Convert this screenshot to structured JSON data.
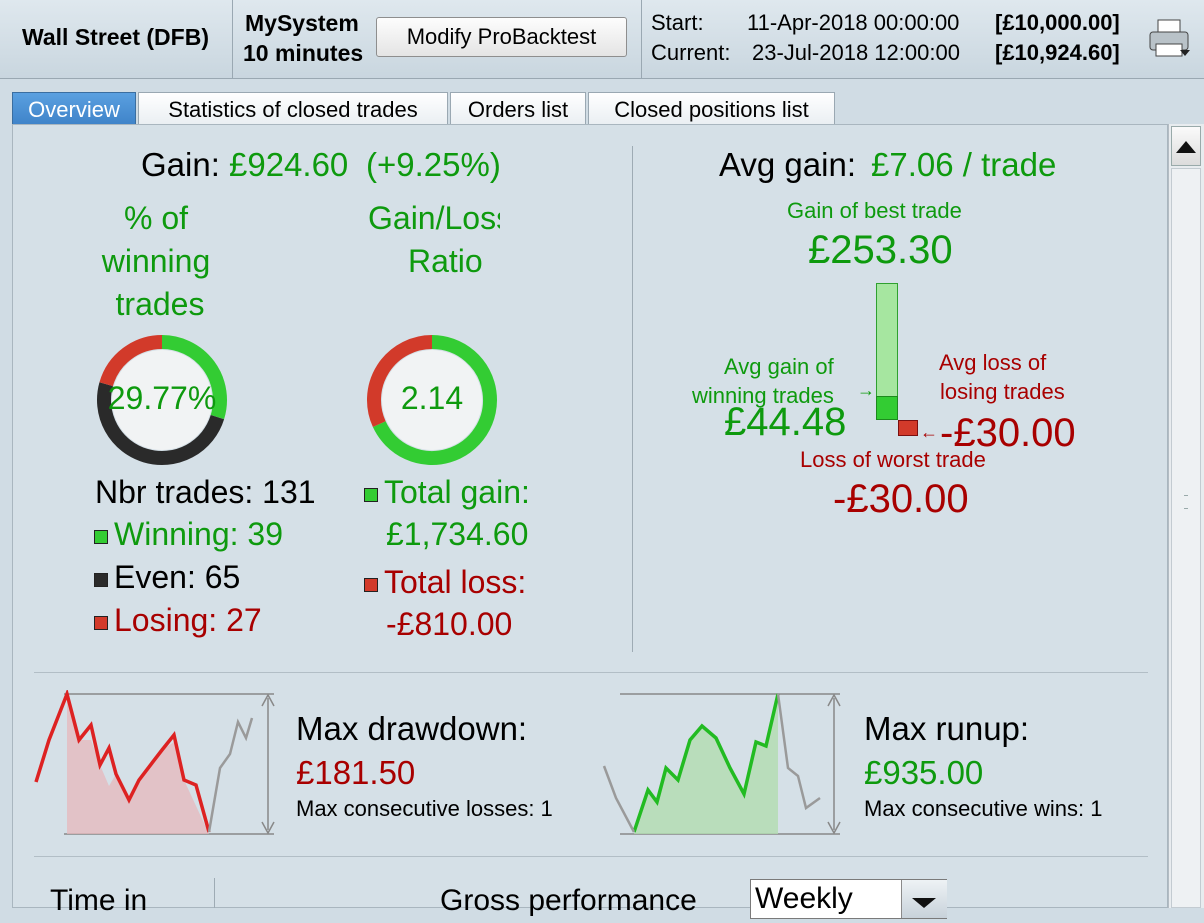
{
  "header": {
    "instrument": "Wall Street (DFB)",
    "system_name": "MySystem",
    "timeframe": "10 minutes",
    "modify_button": "Modify ProBacktest",
    "start_label": "Start:",
    "start_date": "11-Apr-2018 00:00:00",
    "start_capital": "[£10,000.00]",
    "current_label": "Current:",
    "current_date": "23-Jul-2018 12:00:00",
    "current_capital": "[£10,924.60]",
    "print_icon": "printer-icon"
  },
  "tabs": [
    {
      "label": "Overview",
      "active": true
    },
    {
      "label": "Statistics of closed trades",
      "active": false
    },
    {
      "label": "Orders list",
      "active": false
    },
    {
      "label": "Closed positions list",
      "active": false
    }
  ],
  "overview": {
    "gain_label": "Gain:",
    "gain_value": "£924.60",
    "gain_pct": "(+9.25%)",
    "winning_title_1": "% of",
    "winning_title_2": "winning",
    "winning_title_3": "trades",
    "winning_pct": "29.77%",
    "winning_ratio": 0.2977,
    "ratio_title_1": "Gain/Loss",
    "ratio_title_2": "Ratio",
    "gain_loss_ratio": "2.14",
    "gain_share": 0.6817,
    "nbr_trades": "Nbr trades: 131",
    "winning": "Winning: 39",
    "even": "Even: 65",
    "losing": "Losing: 27",
    "total_gain_label": "Total gain:",
    "total_gain_value": "£1,734.60",
    "total_loss_label": "Total loss:",
    "total_loss_value": "-£810.00",
    "avg_gain_label": "Avg gain:",
    "avg_gain_value": "£7.06 / trade",
    "best_trade_label": "Gain of best trade",
    "best_trade_value": "£253.30",
    "avg_win_label_1": "Avg gain of",
    "avg_win_label_2": "winning trades",
    "avg_win_value": "£44.48",
    "avg_loss_label_1": "Avg loss of",
    "avg_loss_label_2": "losing trades",
    "avg_loss_value": "-£30.00",
    "worst_trade_label": "Loss of worst trade",
    "worst_trade_value": "-£30.00",
    "max_drawdown_label": "Max drawdown:",
    "max_drawdown_value": "£181.50",
    "max_consec_losses": "Max consecutive losses: 1",
    "max_runup_label": "Max runup:",
    "max_runup_value": "£935.00",
    "max_consec_wins": "Max consecutive wins: 1",
    "time_in_label": "Time in",
    "gross_perf_label": "Gross performance",
    "period_select": "Weekly"
  },
  "colors": {
    "gain": "#0e9a0e",
    "loss": "#a80000",
    "win_fill": "#33cc33",
    "loss_fill": "#d23a2a",
    "even_fill": "#2a2a2a"
  }
}
